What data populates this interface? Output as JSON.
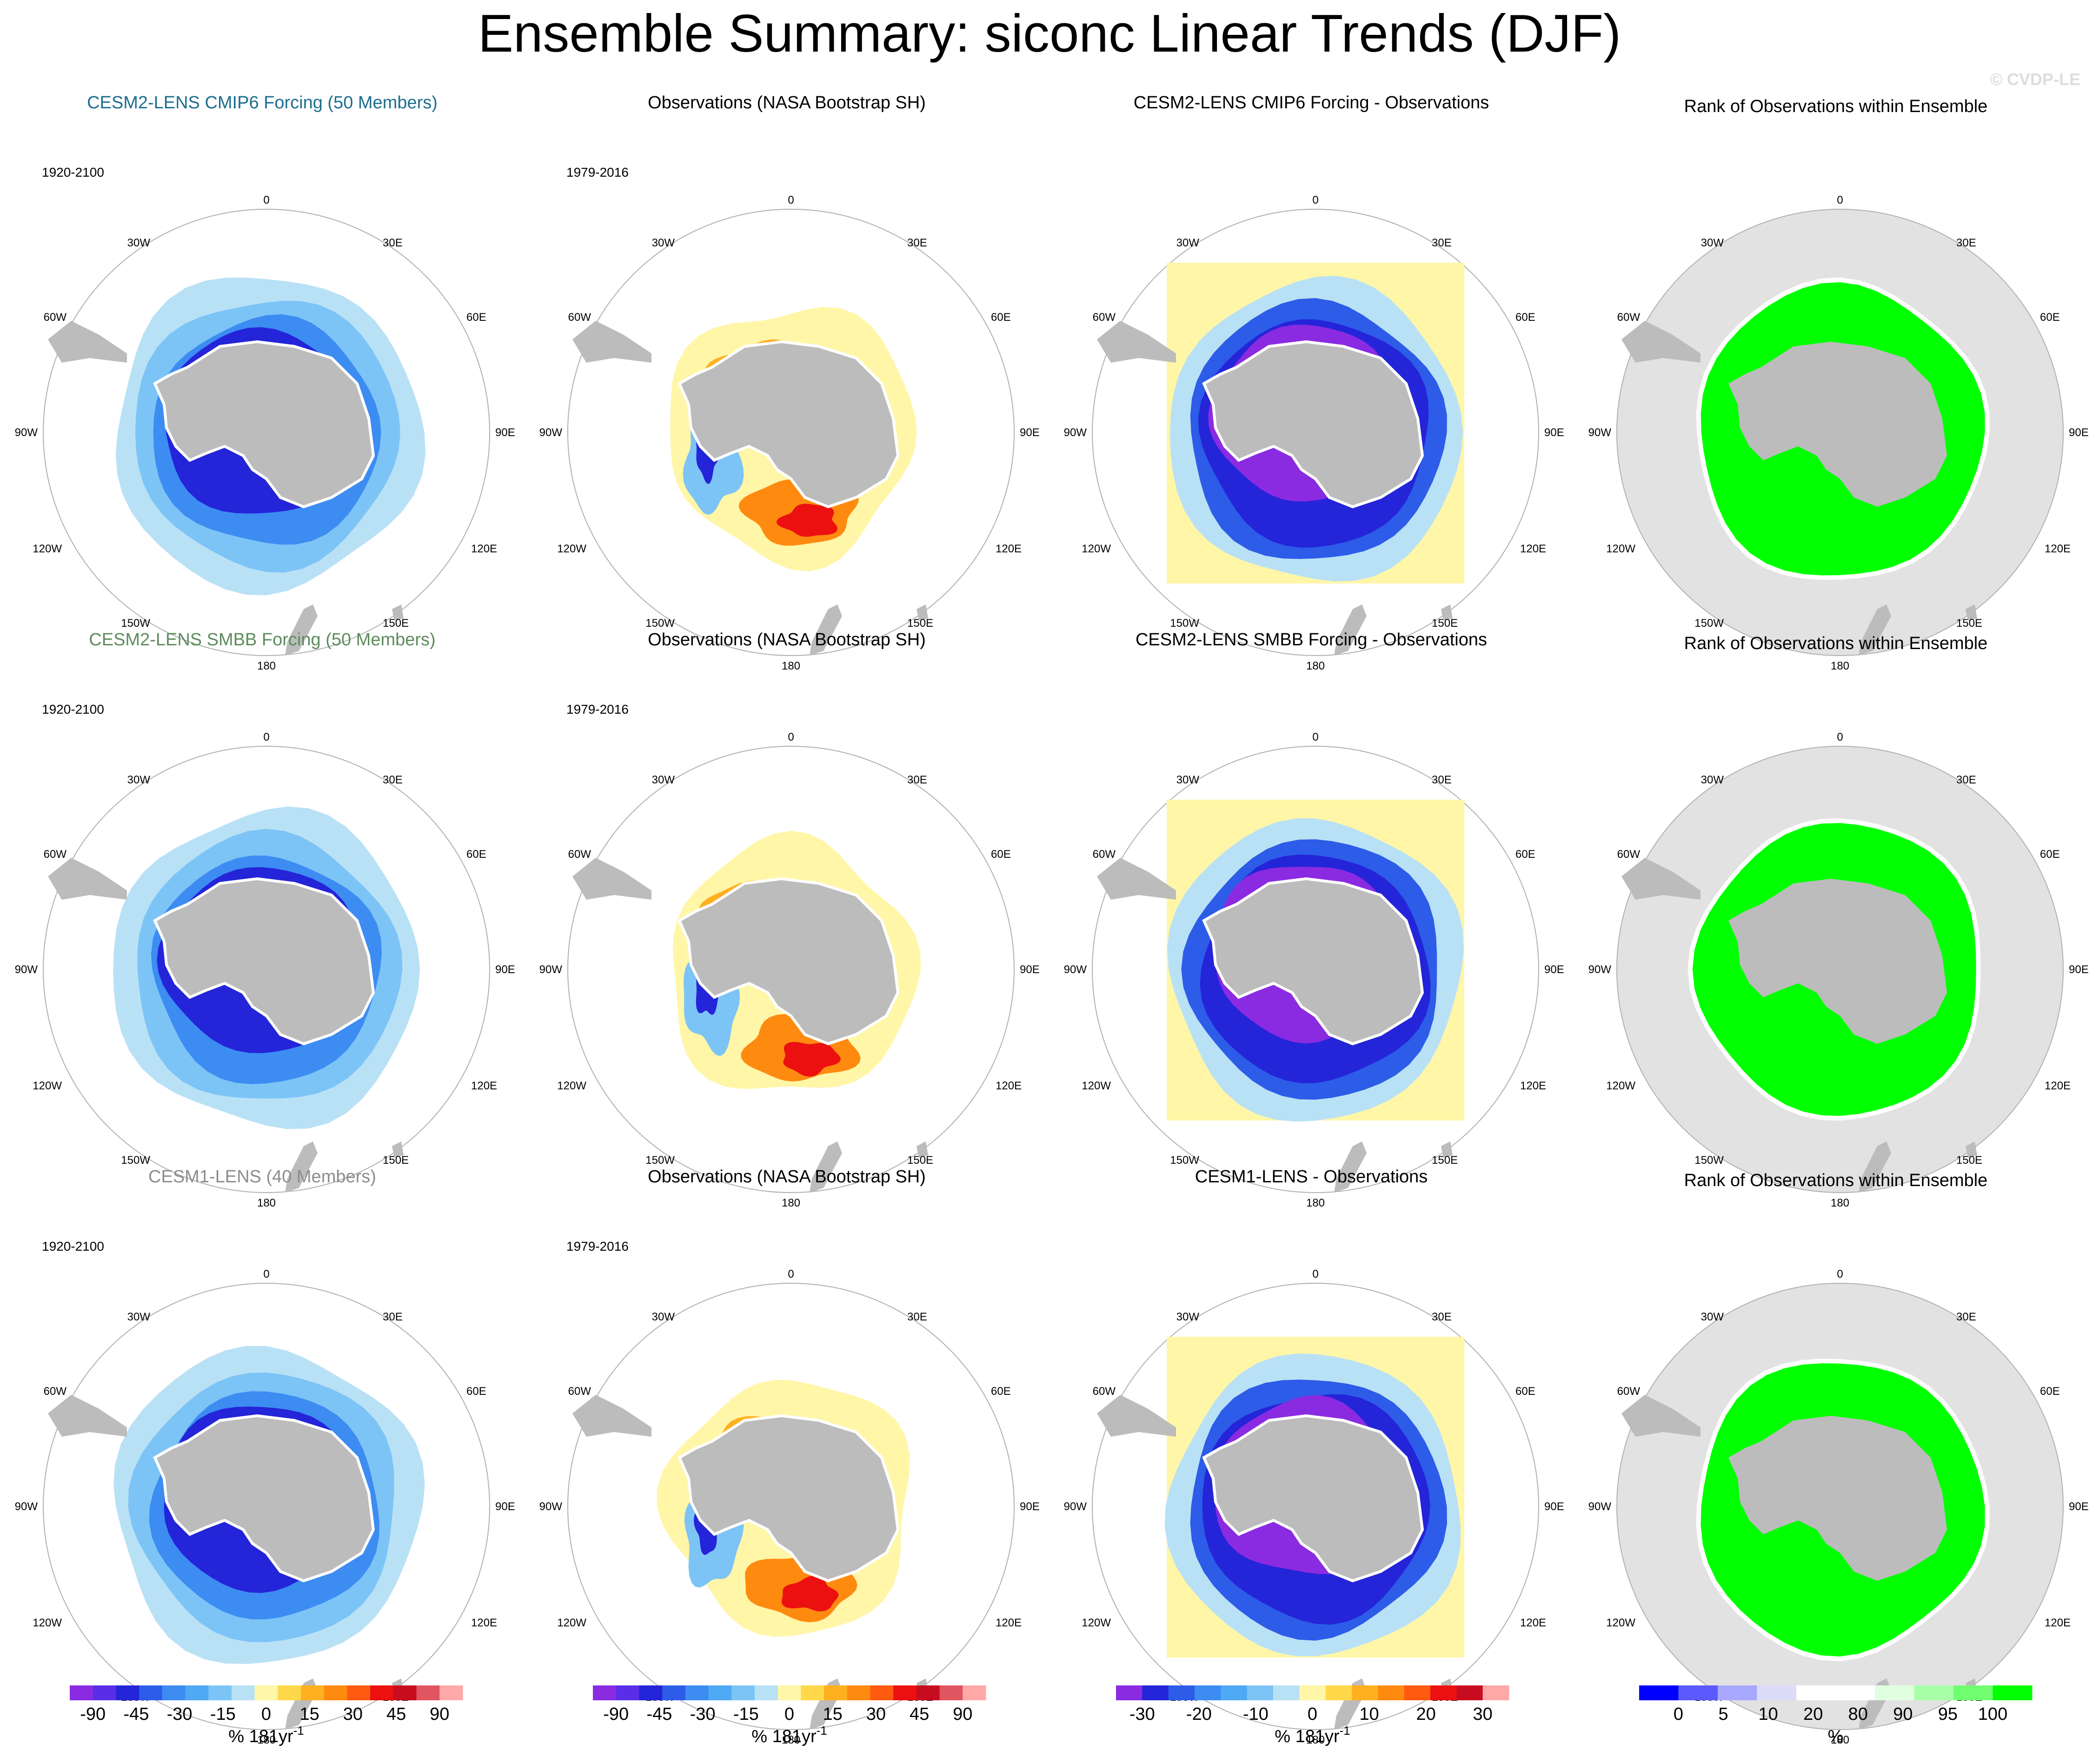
{
  "header": {
    "title": "Ensemble Summary: siconc Linear Trends (DJF)",
    "watermark": "© CVDP-LE"
  },
  "colors": {
    "ocean_bg": "#ffffff",
    "land": "#bcbcbc",
    "rank_bg": "#e2e2e2",
    "circle": "#b0b0b0",
    "trend_scale": [
      "#8a2be2",
      "#5a2ee6",
      "#2424d8",
      "#2c5ce8",
      "#3c8cf2",
      "#4fa9f5",
      "#7dc4f6",
      "#b9e1f6",
      "#fff6a8",
      "#ffd84a",
      "#ffb020",
      "#ff8a10",
      "#ff5a10",
      "#ec1010",
      "#c80c20",
      "#e05560",
      "#ffa8a8"
    ],
    "diff_scale": [
      "#8a2be2",
      "#2424d8",
      "#2c5ce8",
      "#3c8cf2",
      "#4fa9f5",
      "#7dc4f6",
      "#b9e1f6",
      "#fff6a8",
      "#ffd84a",
      "#ffb020",
      "#ff8a10",
      "#ff5a10",
      "#ec1010",
      "#c80c20",
      "#ffa8a8"
    ],
    "rank_scale": [
      "#0000ff",
      "#5a5aff",
      "#a8a8ff",
      "#dcdcf8",
      "#ffffff",
      "#ffffff",
      "#e0ffe0",
      "#a8ffa8",
      "#70ff70",
      "#00ff00"
    ]
  },
  "map_labels": {
    "top": "0",
    "bottom": "180",
    "left": "90W",
    "right": "90E",
    "upper_left": "30W",
    "upper_right": "30E",
    "mid_upper_left": "60W",
    "mid_upper_right": "60E",
    "mid_lower_left": "120W",
    "mid_lower_right": "120E",
    "lower_left": "150W",
    "lower_right": "150E"
  },
  "rows": [
    {
      "panels": [
        {
          "kind": "model",
          "title": "CESM2-LENS CMIP6 Forcing (50 Members)",
          "title_color": "#1c6e8e",
          "period": "1920-2100"
        },
        {
          "kind": "obs",
          "title": "Observations (NASA Bootstrap SH)",
          "title_color": "#000000",
          "period": "1979-2016"
        },
        {
          "kind": "diff",
          "title": "CESM2-LENS CMIP6 Forcing - Observations",
          "title_color": "#000000",
          "period": ""
        },
        {
          "kind": "rank",
          "title": "Rank of Observations within Ensemble",
          "title_color": "#000000",
          "period": ""
        }
      ]
    },
    {
      "panels": [
        {
          "kind": "model",
          "title": "CESM2-LENS SMBB Forcing (50 Members)",
          "title_color": "#5c8c5c",
          "period": "1920-2100"
        },
        {
          "kind": "obs",
          "title": "Observations (NASA Bootstrap SH)",
          "title_color": "#000000",
          "period": "1979-2016"
        },
        {
          "kind": "diff",
          "title": "CESM2-LENS SMBB Forcing - Observations",
          "title_color": "#000000",
          "period": ""
        },
        {
          "kind": "rank",
          "title": "Rank of Observations within Ensemble",
          "title_color": "#000000",
          "period": ""
        }
      ]
    },
    {
      "panels": [
        {
          "kind": "model",
          "title": "CESM1-LENS (40 Members)",
          "title_color": "#8c8c8c",
          "period": "1920-2100"
        },
        {
          "kind": "obs",
          "title": "Observations (NASA Bootstrap SH)",
          "title_color": "#000000",
          "period": "1979-2016"
        },
        {
          "kind": "diff",
          "title": "CESM1-LENS - Observations",
          "title_color": "#000000",
          "period": ""
        },
        {
          "kind": "rank",
          "title": "Rank of Observations within Ensemble",
          "title_color": "#000000",
          "period": ""
        }
      ]
    }
  ],
  "chart_data": [
    {
      "type": "heatmap",
      "name": "model-trend-colorbar",
      "ticks": [
        "-90",
        "-45",
        "-30",
        "-15",
        "0",
        "15",
        "30",
        "45",
        "90"
      ],
      "unit": "% 181yr",
      "unit_sup": "-1",
      "levels": [
        -90,
        -75,
        -60,
        -45,
        -30,
        -15,
        -10,
        -5,
        0,
        5,
        10,
        15,
        30,
        45,
        60,
        75,
        90
      ]
    },
    {
      "type": "heatmap",
      "name": "obs-trend-colorbar",
      "ticks": [
        "-90",
        "-45",
        "-30",
        "-15",
        "0",
        "15",
        "30",
        "45",
        "90"
      ],
      "unit": "% 181yr",
      "unit_sup": "-1",
      "levels": [
        -90,
        -75,
        -60,
        -45,
        -30,
        -15,
        -10,
        -5,
        0,
        5,
        10,
        15,
        30,
        45,
        60,
        75,
        90
      ]
    },
    {
      "type": "heatmap",
      "name": "difference-colorbar",
      "ticks": [
        "-30",
        "-20",
        "-10",
        "0",
        "10",
        "20",
        "30"
      ],
      "unit": "% 181yr",
      "unit_sup": "-1",
      "levels": [
        -30,
        -25,
        -20,
        -15,
        -10,
        -5,
        0,
        5,
        10,
        15,
        20,
        25,
        30
      ]
    },
    {
      "type": "heatmap",
      "name": "rank-colorbar",
      "ticks": [
        "0",
        "5",
        "10",
        "20",
        "80",
        "90",
        "95",
        "100"
      ],
      "unit": "%",
      "unit_sup": "",
      "levels": [
        0,
        5,
        10,
        20,
        80,
        90,
        95,
        100
      ]
    }
  ]
}
